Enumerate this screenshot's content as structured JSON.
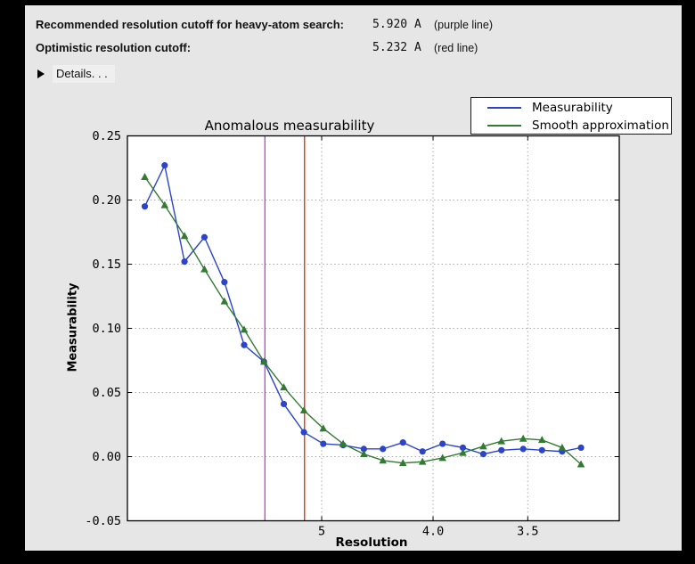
{
  "header": {
    "rows": [
      {
        "label": "Recommended resolution cutoff for heavy-atom search:",
        "value": "5.920 A",
        "note": "(purple line)"
      },
      {
        "label": "Optimistic resolution cutoff:",
        "value": "5.232 A",
        "note": "(red line)"
      }
    ],
    "details": {
      "label": "Details. . .",
      "icon": "triangle-right"
    }
  },
  "chart_data": {
    "type": "line",
    "title": "Anomalous measurability",
    "xlabel": "Resolution",
    "ylabel": "Measurability",
    "grid": true,
    "legend_position": "top-right",
    "x_axis": {
      "unit": "Angstrom",
      "scale": "inverse-square (1/d^2), resolution decreasing to the right",
      "ticks": [
        {
          "label": "5",
          "d": 5.0
        },
        {
          "label": "4.0",
          "d": 4.0
        },
        {
          "label": "3.5",
          "d": 3.5
        }
      ]
    },
    "y_axis": {
      "lim": [
        -0.05,
        0.25
      ],
      "ticks": [
        {
          "label": "0.25",
          "v": 0.25
        },
        {
          "label": "0.20",
          "v": 0.2
        },
        {
          "label": "0.15",
          "v": 0.15
        },
        {
          "label": "0.10",
          "v": 0.1
        },
        {
          "label": "0.05",
          "v": 0.05
        },
        {
          "label": "0.00",
          "v": 0.0
        },
        {
          "label": "-0.05",
          "v": -0.05
        }
      ]
    },
    "x_resolution_A": [
      15.31,
      10.99,
      9.02,
      7.83,
      7.01,
      6.41,
      5.94,
      5.56,
      5.24,
      4.98,
      4.75,
      4.54,
      4.37,
      4.21,
      4.07,
      3.94,
      3.82,
      3.71,
      3.62,
      3.52,
      3.44,
      3.36,
      3.29
    ],
    "series": [
      {
        "name": "Measurability",
        "color": "#2b44c8",
        "marker": "circle",
        "values": [
          0.195,
          0.227,
          0.152,
          0.171,
          0.136,
          0.087,
          0.074,
          0.041,
          0.019,
          0.01,
          0.009,
          0.006,
          0.006,
          0.011,
          0.004,
          0.01,
          0.007,
          0.002,
          0.005,
          0.006,
          0.005,
          0.004,
          0.007
        ]
      },
      {
        "name": "Smooth approximation",
        "color": "#337a33",
        "marker": "triangle-up",
        "values": [
          0.218,
          0.196,
          0.172,
          0.146,
          0.121,
          0.099,
          0.074,
          0.054,
          0.036,
          0.022,
          0.01,
          0.002,
          -0.003,
          -0.005,
          -0.004,
          -0.001,
          0.003,
          0.008,
          0.012,
          0.014,
          0.013,
          0.007,
          -0.006
        ]
      }
    ],
    "cutoff_lines": [
      {
        "name": "recommended heavy-atom search cutoff (purple line)",
        "d": 5.92,
        "color": "#bf4ccc"
      },
      {
        "name": "optimistic cutoff (red line)",
        "d": 5.232,
        "color": "#d93d12"
      }
    ],
    "colors": {
      "plot_bg": "#ffffff",
      "figure_bg": "#e6e6e6",
      "grid": "#aaaaaa",
      "axis": "#000000"
    }
  }
}
